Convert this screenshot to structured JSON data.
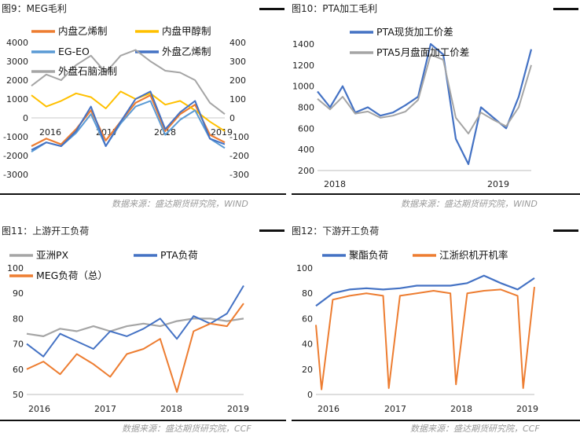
{
  "figures": [
    {
      "caption": "图9：MEG毛利",
      "source": "数据来源：盛达期货研究院，WIND"
    },
    {
      "caption": "图10：PTA加工毛利",
      "source": "数据来源：盛达期货研究院，WIND"
    },
    {
      "caption": "图11：上游开工负荷",
      "source": "数据来源：盛达期货研究院，CCF"
    },
    {
      "caption": "图12：下游开工负荷",
      "source": "数据来源：盛达期货研究院，CCF"
    }
  ],
  "chart_data": [
    {
      "type": "line",
      "title": "MEG毛利",
      "x": [
        "2016",
        "2017",
        "2018",
        "2019"
      ],
      "x_range": [
        "2016-01",
        "2019-04"
      ],
      "ylim": [
        -3000,
        4000
      ],
      "yticks": [
        "4000",
        "3000",
        "2000",
        "1000",
        "0",
        "-1000",
        "-2000",
        "-3000"
      ],
      "y2lim": [
        -300,
        400
      ],
      "y2ticks": [
        "400",
        "300",
        "200",
        "100",
        "0",
        "-100",
        "-200",
        "-300"
      ],
      "legend": "top",
      "series": [
        {
          "name": "内盘乙烯制",
          "axis": "left",
          "color": "#ED7D31",
          "points": [
            [
              "2016-01",
              -1500
            ],
            [
              "2016-04",
              -1100
            ],
            [
              "2016-07",
              -1400
            ],
            [
              "2016-10",
              -600
            ],
            [
              "2017-01",
              400
            ],
            [
              "2017-04",
              -1200
            ],
            [
              "2017-07",
              -200
            ],
            [
              "2017-10",
              800
            ],
            [
              "2018-01",
              1200
            ],
            [
              "2018-04",
              -700
            ],
            [
              "2018-07",
              200
            ],
            [
              "2018-10",
              700
            ],
            [
              "2019-01",
              -900
            ],
            [
              "2019-04",
              -1300
            ]
          ]
        },
        {
          "name": "内盘甲醇制",
          "axis": "left",
          "color": "#FFC000",
          "points": [
            [
              "2016-01",
              1200
            ],
            [
              "2016-04",
              600
            ],
            [
              "2016-07",
              900
            ],
            [
              "2016-10",
              1300
            ],
            [
              "2017-01",
              1100
            ],
            [
              "2017-04",
              500
            ],
            [
              "2017-07",
              1400
            ],
            [
              "2017-10",
              1000
            ],
            [
              "2018-01",
              1300
            ],
            [
              "2018-04",
              700
            ],
            [
              "2018-07",
              900
            ],
            [
              "2018-10",
              400
            ],
            [
              "2019-01",
              -200
            ],
            [
              "2019-04",
              -700
            ]
          ]
        },
        {
          "name": "EG-EO",
          "axis": "left",
          "color": "#5B9BD5",
          "points": [
            [
              "2016-01",
              -1800
            ],
            [
              "2016-04",
              -1300
            ],
            [
              "2016-07",
              -1500
            ],
            [
              "2016-10",
              -800
            ],
            [
              "2017-01",
              200
            ],
            [
              "2017-04",
              -1500
            ],
            [
              "2017-07",
              -300
            ],
            [
              "2017-10",
              600
            ],
            [
              "2018-01",
              900
            ],
            [
              "2018-04",
              -900
            ],
            [
              "2018-07",
              -100
            ],
            [
              "2018-10",
              400
            ],
            [
              "2019-01",
              -1100
            ],
            [
              "2019-04",
              -1600
            ]
          ]
        },
        {
          "name": "外盘乙烯制",
          "axis": "right",
          "color": "#4472C4",
          "points": [
            [
              "2016-01",
              -170
            ],
            [
              "2016-04",
              -130
            ],
            [
              "2016-07",
              -150
            ],
            [
              "2016-10",
              -70
            ],
            [
              "2017-01",
              60
            ],
            [
              "2017-04",
              -150
            ],
            [
              "2017-07",
              -20
            ],
            [
              "2017-10",
              100
            ],
            [
              "2018-01",
              140
            ],
            [
              "2018-04",
              -60
            ],
            [
              "2018-07",
              30
            ],
            [
              "2018-10",
              90
            ],
            [
              "2019-01",
              -110
            ],
            [
              "2019-04",
              -140
            ]
          ]
        },
        {
          "name": "外盘石脑油制",
          "axis": "right",
          "color": "#A5A5A5",
          "points": [
            [
              "2016-01",
              170
            ],
            [
              "2016-04",
              230
            ],
            [
              "2016-07",
              200
            ],
            [
              "2016-10",
              280
            ],
            [
              "2017-01",
              330
            ],
            [
              "2017-04",
              240
            ],
            [
              "2017-07",
              330
            ],
            [
              "2017-10",
              360
            ],
            [
              "2018-01",
              300
            ],
            [
              "2018-04",
              250
            ],
            [
              "2018-07",
              240
            ],
            [
              "2018-10",
              200
            ],
            [
              "2019-01",
              80
            ],
            [
              "2019-04",
              20
            ]
          ]
        }
      ]
    },
    {
      "type": "line",
      "title": "PTA加工毛利",
      "x": [
        "2018",
        "2019"
      ],
      "x_range": [
        "2017-11",
        "2019-04"
      ],
      "ylim": [
        200,
        1400
      ],
      "yticks": [
        "1400",
        "1200",
        "1000",
        "800",
        "600",
        "400",
        "200"
      ],
      "legend": "top",
      "series": [
        {
          "name": "PTA现货加工价差",
          "color": "#4472C4",
          "points": [
            [
              "2017-11",
              950
            ],
            [
              "2017-12",
              800
            ],
            [
              "2018-01",
              1000
            ],
            [
              "2018-02",
              750
            ],
            [
              "2018-03",
              800
            ],
            [
              "2018-04",
              720
            ],
            [
              "2018-05",
              750
            ],
            [
              "2018-06",
              820
            ],
            [
              "2018-07",
              900
            ],
            [
              "2018-08",
              1400
            ],
            [
              "2018-09",
              1300
            ],
            [
              "2018-10",
              500
            ],
            [
              "2018-11",
              260
            ],
            [
              "2018-12",
              800
            ],
            [
              "2019-01",
              700
            ],
            [
              "2019-02",
              600
            ],
            [
              "2019-03",
              900
            ],
            [
              "2019-04",
              1350
            ]
          ]
        },
        {
          "name": "PTA5月盘面加工价差",
          "color": "#A5A5A5",
          "points": [
            [
              "2017-11",
              880
            ],
            [
              "2017-12",
              780
            ],
            [
              "2018-01",
              900
            ],
            [
              "2018-02",
              740
            ],
            [
              "2018-03",
              760
            ],
            [
              "2018-04",
              700
            ],
            [
              "2018-05",
              720
            ],
            [
              "2018-06",
              760
            ],
            [
              "2018-07",
              870
            ],
            [
              "2018-08",
              1300
            ],
            [
              "2018-09",
              1250
            ],
            [
              "2018-10",
              700
            ],
            [
              "2018-11",
              550
            ],
            [
              "2018-12",
              750
            ],
            [
              "2019-01",
              680
            ],
            [
              "2019-02",
              620
            ],
            [
              "2019-03",
              800
            ],
            [
              "2019-04",
              1200
            ]
          ]
        }
      ]
    },
    {
      "type": "line",
      "title": "上游开工负荷",
      "x": [
        "2016",
        "2017",
        "2018",
        "2019"
      ],
      "x_range": [
        "2016-01",
        "2019-04"
      ],
      "ylim": [
        50,
        100
      ],
      "yticks": [
        "100",
        "90",
        "80",
        "70",
        "60",
        "50"
      ],
      "legend": "top",
      "series": [
        {
          "name": "亚洲PX",
          "color": "#A5A5A5",
          "points": [
            [
              "2016-01",
              74
            ],
            [
              "2016-04",
              73
            ],
            [
              "2016-07",
              76
            ],
            [
              "2016-10",
              75
            ],
            [
              "2017-01",
              77
            ],
            [
              "2017-04",
              75
            ],
            [
              "2017-07",
              77
            ],
            [
              "2017-10",
              78
            ],
            [
              "2018-01",
              77
            ],
            [
              "2018-04",
              79
            ],
            [
              "2018-07",
              80
            ],
            [
              "2018-10",
              80
            ],
            [
              "2019-01",
              79
            ],
            [
              "2019-04",
              80
            ]
          ]
        },
        {
          "name": "PTA负荷",
          "color": "#4472C4",
          "points": [
            [
              "2016-01",
              70
            ],
            [
              "2016-04",
              65
            ],
            [
              "2016-07",
              74
            ],
            [
              "2016-10",
              71
            ],
            [
              "2017-01",
              68
            ],
            [
              "2017-04",
              75
            ],
            [
              "2017-07",
              73
            ],
            [
              "2017-10",
              76
            ],
            [
              "2018-01",
              80
            ],
            [
              "2018-04",
              72
            ],
            [
              "2018-07",
              81
            ],
            [
              "2018-10",
              78
            ],
            [
              "2019-01",
              82
            ],
            [
              "2019-04",
              93
            ]
          ]
        },
        {
          "name": "MEG负荷（总）",
          "color": "#ED7D31",
          "points": [
            [
              "2016-01",
              60
            ],
            [
              "2016-04",
              63
            ],
            [
              "2016-07",
              58
            ],
            [
              "2016-10",
              66
            ],
            [
              "2017-01",
              62
            ],
            [
              "2017-04",
              57
            ],
            [
              "2017-07",
              66
            ],
            [
              "2017-10",
              68
            ],
            [
              "2018-01",
              72
            ],
            [
              "2018-04",
              51
            ],
            [
              "2018-07",
              75
            ],
            [
              "2018-10",
              78
            ],
            [
              "2019-01",
              77
            ],
            [
              "2019-04",
              86
            ]
          ]
        }
      ]
    },
    {
      "type": "line",
      "title": "下游开工负荷",
      "x": [
        "2016",
        "2017",
        "2018",
        "2019"
      ],
      "x_range": [
        "2016-01",
        "2019-04"
      ],
      "ylim": [
        0,
        100
      ],
      "yticks": [
        "100",
        "80",
        "60",
        "40",
        "20",
        "0"
      ],
      "legend": "top",
      "series": [
        {
          "name": "聚酯负荷",
          "color": "#4472C4",
          "points": [
            [
              "2016-01",
              70
            ],
            [
              "2016-04",
              80
            ],
            [
              "2016-07",
              83
            ],
            [
              "2016-10",
              84
            ],
            [
              "2017-01",
              83
            ],
            [
              "2017-04",
              84
            ],
            [
              "2017-07",
              86
            ],
            [
              "2017-10",
              86
            ],
            [
              "2018-01",
              86
            ],
            [
              "2018-04",
              88
            ],
            [
              "2018-07",
              94
            ],
            [
              "2018-10",
              88
            ],
            [
              "2019-01",
              83
            ],
            [
              "2019-04",
              92
            ]
          ]
        },
        {
          "name": "江浙织机开机率",
          "color": "#ED7D31",
          "points": [
            [
              "2016-01",
              55
            ],
            [
              "2016-02",
              4
            ],
            [
              "2016-04",
              75
            ],
            [
              "2016-07",
              78
            ],
            [
              "2016-10",
              80
            ],
            [
              "2017-01",
              78
            ],
            [
              "2017-02",
              5
            ],
            [
              "2017-04",
              78
            ],
            [
              "2017-07",
              80
            ],
            [
              "2017-10",
              82
            ],
            [
              "2018-01",
              80
            ],
            [
              "2018-02",
              8
            ],
            [
              "2018-04",
              80
            ],
            [
              "2018-07",
              82
            ],
            [
              "2018-10",
              83
            ],
            [
              "2019-01",
              78
            ],
            [
              "2019-02",
              5
            ],
            [
              "2019-04",
              85
            ]
          ]
        }
      ]
    }
  ]
}
